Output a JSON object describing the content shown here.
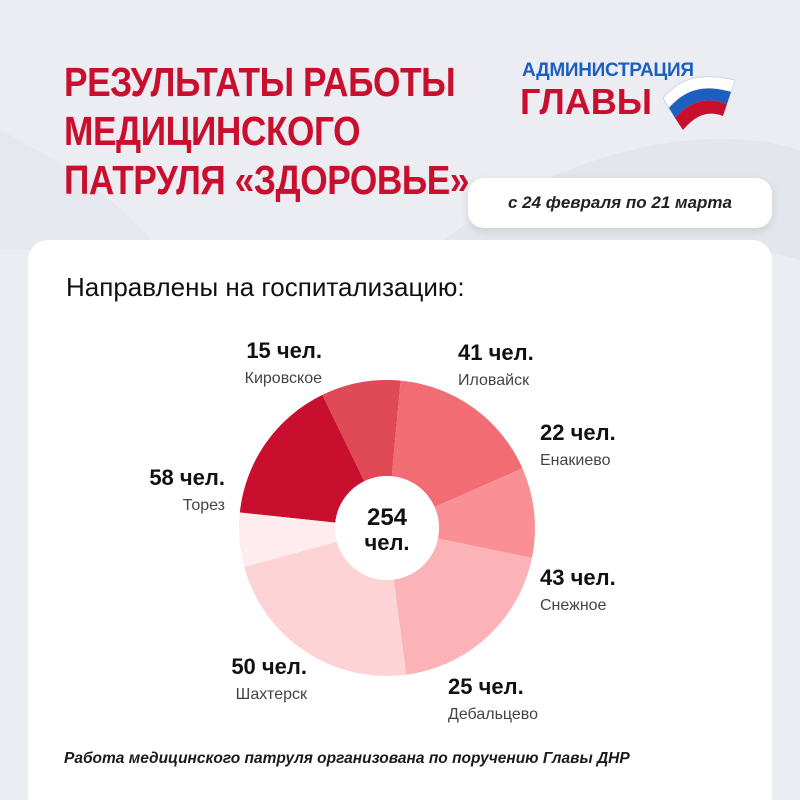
{
  "header": {
    "title_lines": [
      "РЕЗУЛЬТАТЫ РАБОТЫ",
      "МЕДИЦИНСКОГО",
      "ПАТРУЛЯ «ЗДОРОВЬЕ»"
    ],
    "date_range": "с 24 февраля по 21 марта"
  },
  "logo": {
    "line1": "АДМИНИСТРАЦИЯ",
    "line2": "ГЛАВЫ",
    "icon": "russian-flag-icon"
  },
  "card": {
    "heading": "Направлены на госпитализацию:"
  },
  "chart_data": {
    "type": "pie",
    "variant": "donut",
    "title": "",
    "center_value": "254",
    "center_unit": "чел.",
    "unit_suffix": "чел.",
    "slices": [
      {
        "label": "Иловайск",
        "value": 41,
        "color": "#c8102e"
      },
      {
        "label": "Енакиево",
        "value": 22,
        "color": "#e04a57"
      },
      {
        "label": "Снежное",
        "value": 43,
        "color": "#f26c74"
      },
      {
        "label": "Дебальцево",
        "value": 25,
        "color": "#fa8f96"
      },
      {
        "label": "Шахтерск",
        "value": 50,
        "color": "#fbb3b8"
      },
      {
        "label": "Торез",
        "value": 58,
        "color": "#fdd3d6"
      },
      {
        "label": "Кировское",
        "value": 15,
        "color": "#feecee"
      }
    ],
    "label_positions": [
      "top-right",
      "right",
      "right",
      "bottom-right",
      "bottom-left",
      "left",
      "top-left"
    ]
  },
  "footer": {
    "note": "Работа медицинского патруля организована по поручению Главы ДНР"
  },
  "colors": {
    "accent_red": "#c8102e",
    "brand_blue": "#1c5fbf",
    "background": "#ecedf2",
    "card": "#ffffff"
  }
}
